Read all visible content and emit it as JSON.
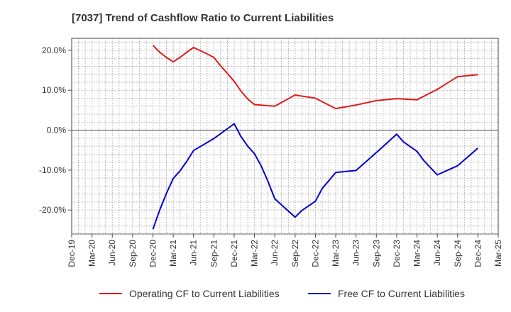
{
  "chart_data": {
    "type": "line",
    "title": "[7037]  Trend of Cashflow Ratio to Current Liabilities",
    "xlabel": "",
    "ylabel": "",
    "x_ticks": [
      "Dec-19",
      "Mar-20",
      "Jun-20",
      "Sep-20",
      "Dec-20",
      "Mar-21",
      "Jun-21",
      "Sep-21",
      "Dec-21",
      "Mar-22",
      "Jun-22",
      "Sep-22",
      "Dec-22",
      "Mar-23",
      "Jun-23",
      "Sep-23",
      "Dec-23",
      "Mar-24",
      "Jun-24",
      "Sep-24",
      "Dec-24",
      "Mar-25"
    ],
    "y_ticks": [
      "20.0%",
      "10.0%",
      "0.0%",
      "-10.0%",
      "-20.0%"
    ],
    "y_tick_values": [
      20,
      10,
      0,
      -10,
      -20
    ],
    "ylim": [
      -26,
      23
    ],
    "grid": true,
    "legend_position": "bottom",
    "series": [
      {
        "name": "Operating CF to Current Liabilities",
        "color": "#e31a1c",
        "points": [
          [
            "Dec-20",
            21.2
          ],
          [
            "Jan-21",
            19.5
          ],
          [
            "Feb-21",
            18.2
          ],
          [
            "Mar-21",
            17.1
          ],
          [
            "Apr-21",
            18.2
          ],
          [
            "May-21",
            19.5
          ],
          [
            "Jun-21",
            20.7
          ],
          [
            "Jul-21",
            19.9
          ],
          [
            "Aug-21",
            19.1
          ],
          [
            "Sep-21",
            18.2
          ],
          [
            "Oct-21",
            16.1
          ],
          [
            "Nov-21",
            14.2
          ],
          [
            "Dec-21",
            12.2
          ],
          [
            "Jan-22",
            9.8
          ],
          [
            "Feb-22",
            7.8
          ],
          [
            "Mar-22",
            6.4
          ],
          [
            "Jun-22",
            6.0
          ],
          [
            "Sep-22",
            8.8
          ],
          [
            "Dec-22",
            8.0
          ],
          [
            "Mar-23",
            5.4
          ],
          [
            "Jun-23",
            6.3
          ],
          [
            "Sep-23",
            7.4
          ],
          [
            "Dec-23",
            7.9
          ],
          [
            "Mar-24",
            7.6
          ],
          [
            "Jun-24",
            10.2
          ],
          [
            "Sep-24",
            13.4
          ],
          [
            "Dec-24",
            13.9
          ]
        ]
      },
      {
        "name": "Free CF to Current Liabilities",
        "color": "#0000cc",
        "points": [
          [
            "Dec-20",
            -24.8
          ],
          [
            "Jan-21",
            -20.0
          ],
          [
            "Feb-21",
            -15.8
          ],
          [
            "Mar-21",
            -12.1
          ],
          [
            "Apr-21",
            -10.2
          ],
          [
            "May-21",
            -7.8
          ],
          [
            "Jun-21",
            -5.1
          ],
          [
            "Sep-21",
            -2.1
          ],
          [
            "Dec-21",
            1.6
          ],
          [
            "Jan-22",
            -1.6
          ],
          [
            "Feb-22",
            -4.0
          ],
          [
            "Mar-22",
            -5.9
          ],
          [
            "Apr-22",
            -9.0
          ],
          [
            "May-22",
            -12.9
          ],
          [
            "Jun-22",
            -17.2
          ],
          [
            "Sep-22",
            -21.8
          ],
          [
            "Oct-22",
            -20.1
          ],
          [
            "Dec-22",
            -17.8
          ],
          [
            "Jan-23",
            -14.6
          ],
          [
            "Mar-23",
            -10.6
          ],
          [
            "Jun-23",
            -10.1
          ],
          [
            "Sep-23",
            -5.6
          ],
          [
            "Dec-23",
            -1.0
          ],
          [
            "Jan-24",
            -2.9
          ],
          [
            "Mar-24",
            -5.3
          ],
          [
            "Apr-24",
            -7.6
          ],
          [
            "Jun-24",
            -11.2
          ],
          [
            "Sep-24",
            -8.9
          ],
          [
            "Dec-24",
            -4.5
          ]
        ]
      }
    ]
  }
}
